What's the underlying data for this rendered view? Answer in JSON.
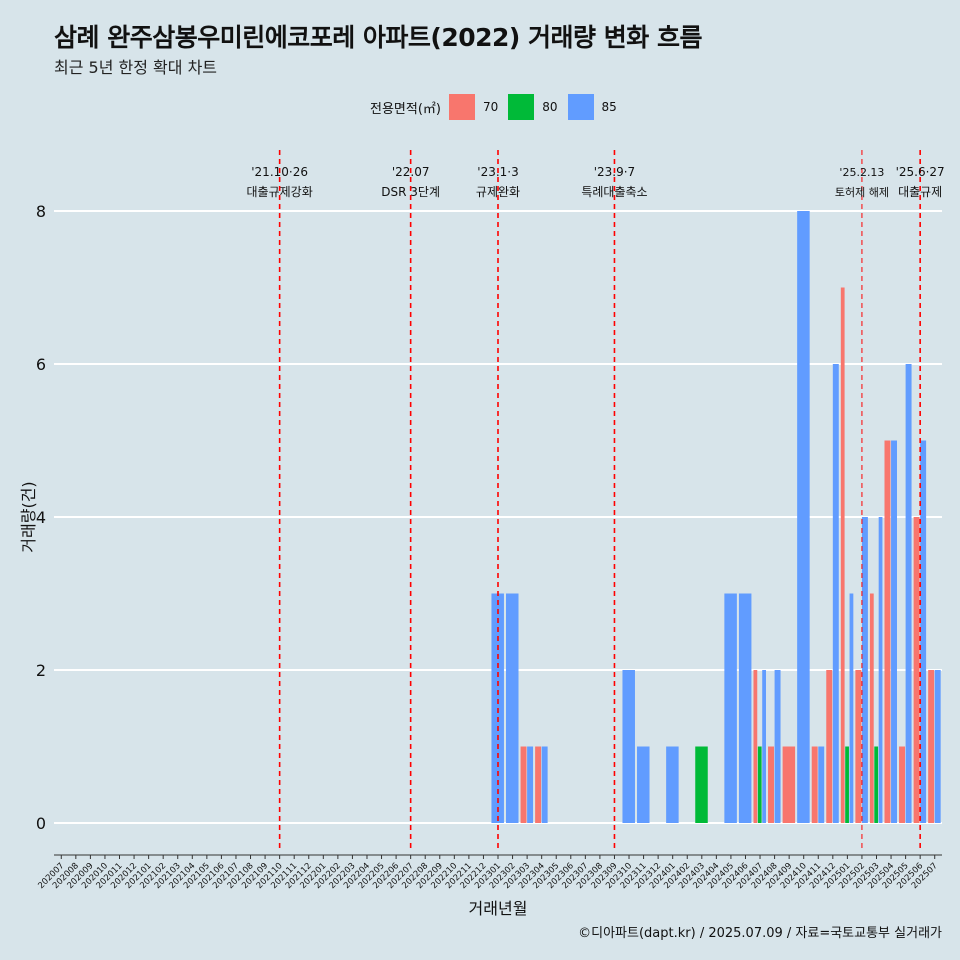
{
  "title": "삼례 완주삼봉우미린에코포레 아파트(2022) 거래량 변화 흐름",
  "subtitle": "최근 5년 한정 확대 차트",
  "caption": "©디아파트(dapt.kr) / 2025.07.09 / 자료=국토교통부 실거래가",
  "legend": {
    "title": "전용면적(㎡)",
    "items": [
      {
        "label": "70",
        "color": "#f8766d"
      },
      {
        "label": "80",
        "color": "#00ba38"
      },
      {
        "label": "85",
        "color": "#619cff"
      }
    ]
  },
  "chart_data": {
    "type": "bar",
    "xlabel": "거래년월",
    "ylabel": "거래량(건)",
    "ylim": [
      0,
      8
    ],
    "yticks": [
      "0",
      "2",
      "4",
      "6",
      "8"
    ],
    "grid": true,
    "categories": [
      "202007",
      "202008",
      "202009",
      "202010",
      "202011",
      "202012",
      "202101",
      "202102",
      "202103",
      "202104",
      "202105",
      "202106",
      "202107",
      "202108",
      "202109",
      "202110",
      "202111",
      "202112",
      "202201",
      "202202",
      "202203",
      "202204",
      "202205",
      "202206",
      "202207",
      "202208",
      "202209",
      "202210",
      "202211",
      "202212",
      "202301",
      "202302",
      "202303",
      "202304",
      "202305",
      "202306",
      "202307",
      "202308",
      "202309",
      "202310",
      "202311",
      "202312",
      "202401",
      "202402",
      "202403",
      "202404",
      "202405",
      "202406",
      "202407",
      "202408",
      "202409",
      "202410",
      "202411",
      "202412",
      "202501",
      "202502",
      "202503",
      "202504",
      "202505",
      "202506",
      "202507"
    ],
    "series": [
      {
        "name": "70",
        "color": "#f8766d",
        "values": {
          "202303": 1,
          "202304": 1,
          "202407": 2,
          "202408": 1,
          "202409": 1,
          "202411": 1,
          "202412": 2,
          "202501": 7,
          "202502": 2,
          "202503": 3,
          "202504": 5,
          "202505": 1,
          "202506": 4,
          "202507": 2
        }
      },
      {
        "name": "80",
        "color": "#00ba38",
        "values": {
          "202403": 1,
          "202407": 1,
          "202501": 1,
          "202503": 1
        }
      },
      {
        "name": "85",
        "color": "#619cff",
        "values": {
          "202301": 3,
          "202302": 3,
          "202303": 1,
          "202304": 1,
          "202310": 2,
          "202311": 1,
          "202401": 1,
          "202405": 3,
          "202406": 3,
          "202407": 2,
          "202408": 2,
          "202410": 8,
          "202411": 1,
          "202412": 6,
          "202501": 3,
          "202502": 4,
          "202503": 4,
          "202504": 5,
          "202505": 6,
          "202506": 5,
          "202507": 2
        }
      }
    ],
    "events": [
      {
        "date": "202110",
        "label_top": "'21.10·26",
        "label_bottom": "대출규제강화"
      },
      {
        "date": "202207",
        "label_top": "'22.07",
        "label_bottom": "DSR 3단계"
      },
      {
        "date": "202301",
        "label_top": "'23.1·3",
        "label_bottom": "규제완화"
      },
      {
        "date": "202309",
        "label_top": "'23.9·7",
        "label_bottom": "특례대출축소"
      },
      {
        "date": "202502",
        "label_top": "'25.2.13",
        "label_bottom": "토허제 해제"
      },
      {
        "date": "202506",
        "label_top": "'25.6·27",
        "label_bottom": "대출규제"
      }
    ]
  }
}
